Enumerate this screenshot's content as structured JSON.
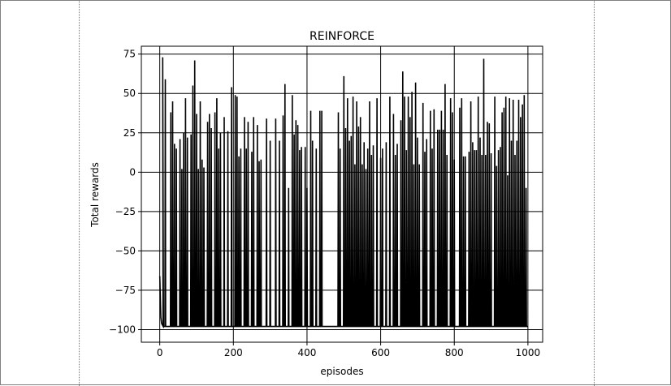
{
  "chart_data": {
    "type": "line",
    "title": "REINFORCE",
    "xlabel": "episodes",
    "ylabel": "Total rewards",
    "xlim": [
      -50,
      1040
    ],
    "ylim": [
      -108,
      80
    ],
    "xticks": [
      0,
      200,
      400,
      600,
      800,
      1000
    ],
    "yticks": [
      75,
      50,
      25,
      0,
      -25,
      -50,
      -75,
      -100
    ],
    "ytick_labels": [
      "75",
      "50",
      "25",
      "0",
      "−25",
      "−50",
      "−75",
      "−100"
    ],
    "grid": true,
    "color": "#000000",
    "baseline": -98,
    "start": [
      [
        0,
        -66
      ],
      [
        1,
        -74
      ],
      [
        2,
        -85
      ],
      [
        3,
        -92
      ],
      [
        5,
        -96
      ],
      [
        7,
        -97
      ],
      [
        10,
        -98
      ]
    ],
    "spikes": [
      [
        8,
        73
      ],
      [
        15,
        59
      ],
      [
        30,
        38
      ],
      [
        35,
        45
      ],
      [
        40,
        18
      ],
      [
        45,
        15
      ],
      [
        55,
        21
      ],
      [
        60,
        2
      ],
      [
        65,
        25
      ],
      [
        70,
        47
      ],
      [
        75,
        22
      ],
      [
        85,
        24
      ],
      [
        90,
        55
      ],
      [
        95,
        71
      ],
      [
        100,
        37
      ],
      [
        105,
        2
      ],
      [
        110,
        45
      ],
      [
        115,
        8
      ],
      [
        120,
        3
      ],
      [
        130,
        32
      ],
      [
        135,
        37
      ],
      [
        140,
        28
      ],
      [
        150,
        38
      ],
      [
        155,
        47
      ],
      [
        160,
        15
      ],
      [
        165,
        25
      ],
      [
        175,
        35
      ],
      [
        185,
        26
      ],
      [
        195,
        54
      ],
      [
        205,
        49
      ],
      [
        210,
        48
      ],
      [
        215,
        10
      ],
      [
        220,
        15
      ],
      [
        230,
        35
      ],
      [
        235,
        15
      ],
      [
        240,
        32
      ],
      [
        250,
        13
      ],
      [
        255,
        35
      ],
      [
        265,
        30
      ],
      [
        270,
        7
      ],
      [
        275,
        8
      ],
      [
        290,
        34
      ],
      [
        300,
        20
      ],
      [
        315,
        34
      ],
      [
        325,
        20
      ],
      [
        335,
        36
      ],
      [
        340,
        56
      ],
      [
        350,
        -10
      ],
      [
        360,
        49
      ],
      [
        365,
        24
      ],
      [
        370,
        33
      ],
      [
        375,
        30
      ],
      [
        380,
        14
      ],
      [
        385,
        16
      ],
      [
        395,
        16
      ],
      [
        400,
        -10
      ],
      [
        410,
        39
      ],
      [
        415,
        20
      ],
      [
        425,
        15
      ],
      [
        435,
        39
      ],
      [
        440,
        39
      ],
      [
        485,
        38
      ],
      [
        490,
        15
      ],
      [
        500,
        61
      ],
      [
        505,
        28
      ],
      [
        510,
        47
      ],
      [
        515,
        20
      ],
      [
        520,
        23
      ],
      [
        525,
        48
      ],
      [
        530,
        5
      ],
      [
        535,
        45
      ],
      [
        540,
        29
      ],
      [
        545,
        35
      ],
      [
        550,
        5
      ],
      [
        555,
        19
      ],
      [
        560,
        2
      ],
      [
        565,
        15
      ],
      [
        570,
        45
      ],
      [
        575,
        11
      ],
      [
        580,
        17
      ],
      [
        590,
        47
      ],
      [
        600,
        9
      ],
      [
        605,
        15
      ],
      [
        615,
        19
      ],
      [
        625,
        48
      ],
      [
        635,
        37
      ],
      [
        640,
        11
      ],
      [
        645,
        18
      ],
      [
        655,
        33
      ],
      [
        660,
        64
      ],
      [
        665,
        48
      ],
      [
        670,
        14
      ],
      [
        675,
        48
      ],
      [
        680,
        35
      ],
      [
        685,
        51
      ],
      [
        690,
        5
      ],
      [
        695,
        57
      ],
      [
        700,
        22
      ],
      [
        705,
        5
      ],
      [
        715,
        44
      ],
      [
        720,
        13
      ],
      [
        725,
        21
      ],
      [
        735,
        39
      ],
      [
        740,
        15
      ],
      [
        745,
        40
      ],
      [
        755,
        27
      ],
      [
        760,
        27
      ],
      [
        765,
        39
      ],
      [
        770,
        27
      ],
      [
        775,
        56
      ],
      [
        780,
        11
      ],
      [
        790,
        47
      ],
      [
        795,
        38
      ],
      [
        800,
        8
      ],
      [
        815,
        41
      ],
      [
        820,
        47
      ],
      [
        825,
        10
      ],
      [
        830,
        10
      ],
      [
        840,
        13
      ],
      [
        845,
        45
      ],
      [
        850,
        19
      ],
      [
        855,
        14
      ],
      [
        860,
        14
      ],
      [
        865,
        48
      ],
      [
        870,
        22
      ],
      [
        875,
        11
      ],
      [
        880,
        72
      ],
      [
        885,
        11
      ],
      [
        890,
        32
      ],
      [
        895,
        31
      ],
      [
        900,
        12
      ],
      [
        910,
        48
      ],
      [
        915,
        4
      ],
      [
        920,
        14
      ],
      [
        925,
        16
      ],
      [
        930,
        38
      ],
      [
        935,
        41
      ],
      [
        940,
        48
      ],
      [
        945,
        -2
      ],
      [
        950,
        47
      ],
      [
        955,
        20
      ],
      [
        960,
        46
      ],
      [
        965,
        11
      ],
      [
        970,
        20
      ],
      [
        975,
        46
      ],
      [
        980,
        35
      ],
      [
        985,
        43
      ],
      [
        990,
        49
      ],
      [
        995,
        -10
      ]
    ]
  }
}
